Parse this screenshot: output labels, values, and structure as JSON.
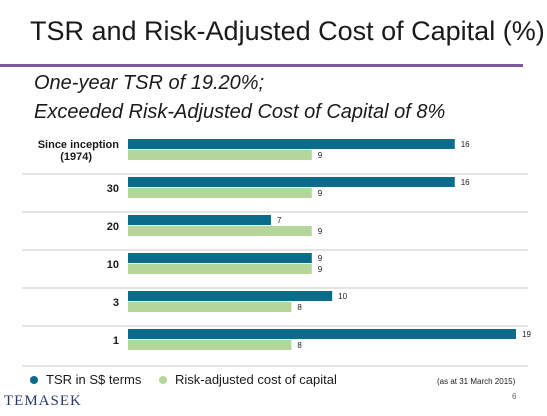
{
  "title": "TSR and Risk-Adjusted Cost of Capital (%)",
  "subtitle_line1": "One-year TSR of 19.20%;",
  "subtitle_line2": "Exceeded Risk-Adjusted Cost of Capital of 8%",
  "chart_data": {
    "type": "bar",
    "orientation": "horizontal",
    "categories": [
      "Since inception\n(1974)",
      "30",
      "20",
      "10",
      "3",
      "1"
    ],
    "series": [
      {
        "name": "TSR in S$ terms",
        "values": [
          16,
          16,
          7,
          9,
          10,
          19
        ],
        "color": "#0a6b8a"
      },
      {
        "name": "Risk-adjusted cost of capital",
        "values": [
          9,
          9,
          9,
          9,
          8,
          8
        ],
        "color": "#b5d69a"
      }
    ],
    "xlim": [
      0,
      19
    ],
    "grid": false,
    "legend": "bottom-left"
  },
  "note": "(as at 31 March 2015)",
  "brand": "TEMASEK",
  "page_number": "6"
}
